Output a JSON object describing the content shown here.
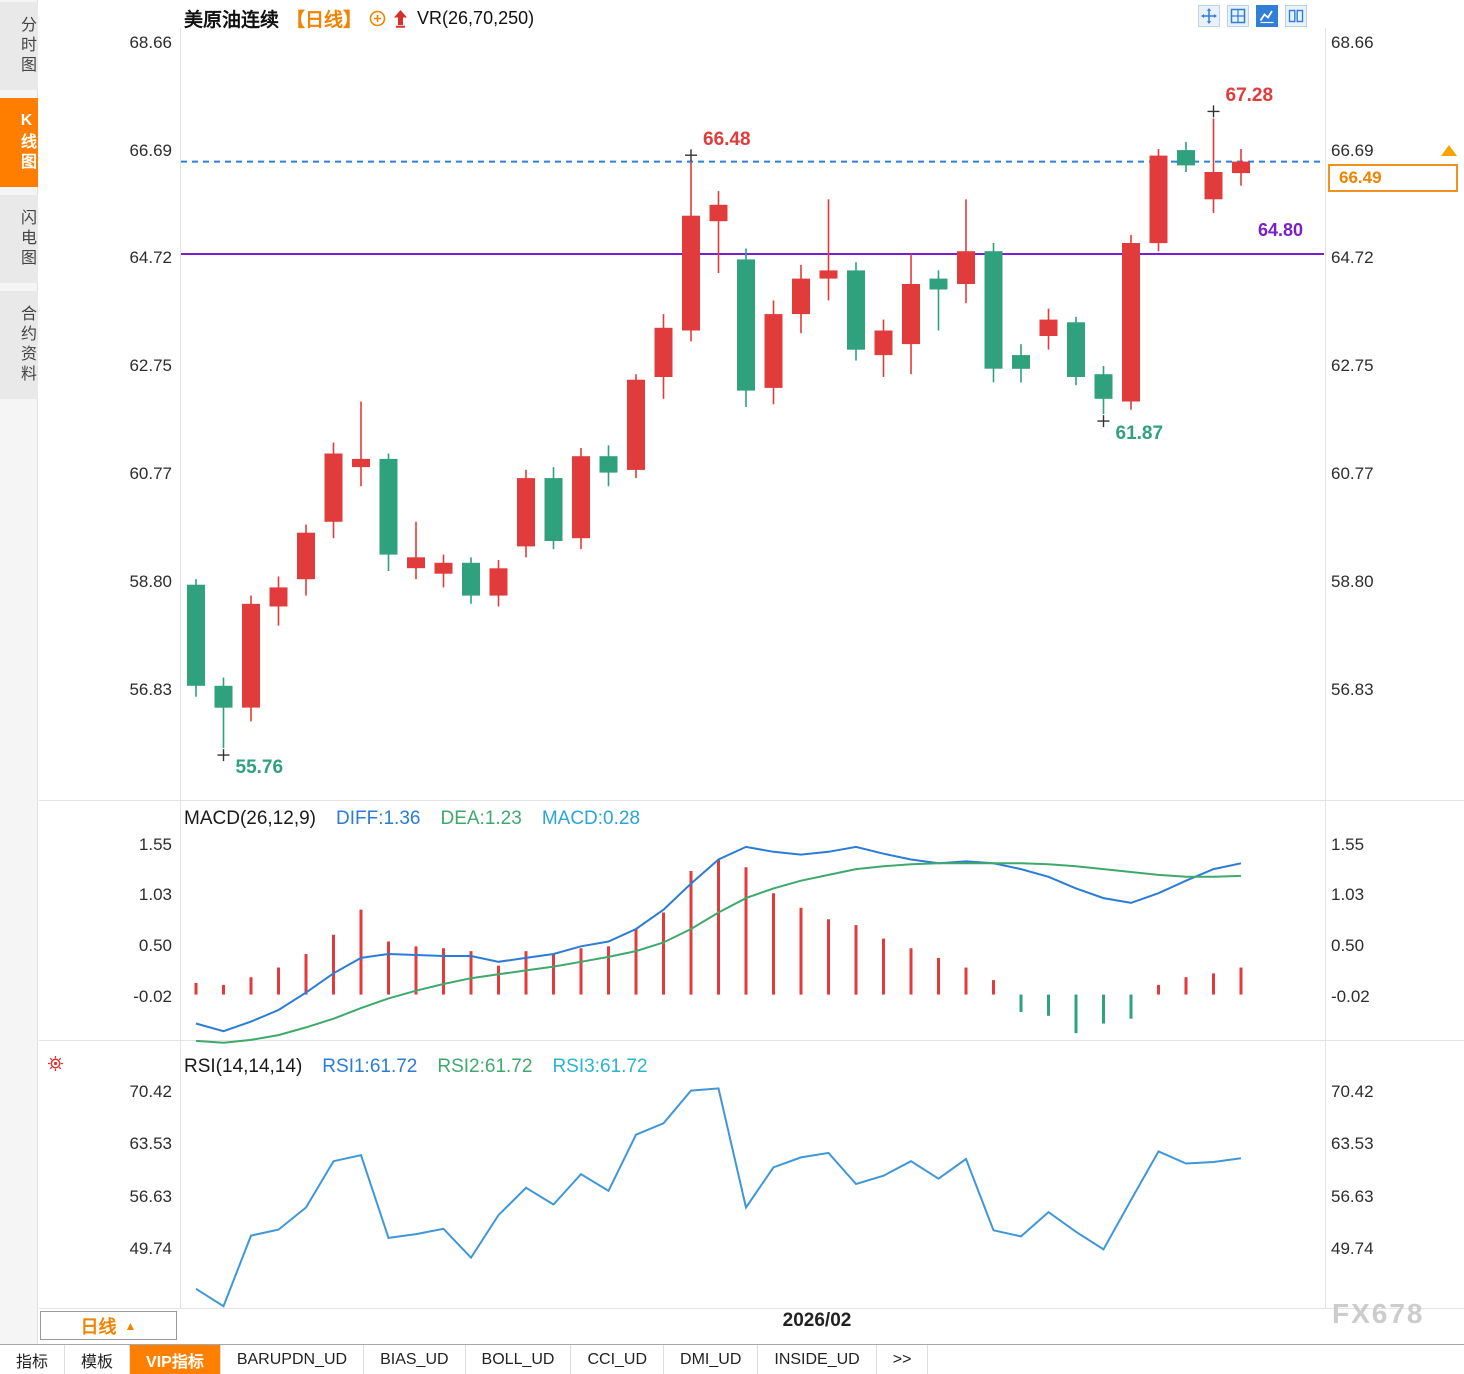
{
  "sidebar": {
    "items": [
      {
        "label": "分时图",
        "active": false
      },
      {
        "label": "K线图",
        "active": true
      },
      {
        "label": "闪电图",
        "active": false
      },
      {
        "label": "合约资料",
        "active": false
      }
    ]
  },
  "header": {
    "title": "美原油连续",
    "period_tag": "【日线】",
    "indicator_label": "VR(26,70,250)"
  },
  "toolbar": {
    "icons": [
      "pan-icon",
      "grid-layout-icon",
      "line-chart-icon",
      "split-view-icon"
    ],
    "active_icon": "line-chart-icon"
  },
  "colors": {
    "up": "#e23b3b",
    "down": "#2fa17c",
    "accent_orange": "#f08300",
    "link_blue": "#2f7ed8",
    "purple": "#7a1fd0",
    "diff_blue": "#2b7cd6",
    "dea_green": "#3fa96c",
    "rsi_blue": "#3f97d9"
  },
  "chart_data": [
    {
      "type": "candlestick",
      "title": "美原油连续 日线",
      "y_ticks": [
        68.66,
        66.69,
        64.72,
        62.75,
        60.77,
        58.8,
        56.83
      ],
      "candles": [
        [
          58.75,
          58.85,
          56.7,
          56.9
        ],
        [
          56.9,
          57.05,
          55.76,
          56.5
        ],
        [
          56.5,
          58.55,
          56.25,
          58.4
        ],
        [
          58.35,
          58.9,
          58.0,
          58.7
        ],
        [
          58.85,
          59.85,
          58.55,
          59.7
        ],
        [
          59.9,
          61.35,
          59.6,
          61.15
        ],
        [
          60.9,
          62.1,
          60.55,
          61.05
        ],
        [
          61.05,
          61.15,
          59.0,
          59.3
        ],
        [
          59.05,
          59.9,
          58.85,
          59.25
        ],
        [
          58.95,
          59.3,
          58.7,
          59.15
        ],
        [
          59.15,
          59.25,
          58.4,
          58.55
        ],
        [
          58.55,
          59.2,
          58.35,
          59.05
        ],
        [
          59.45,
          60.85,
          59.25,
          60.7
        ],
        [
          60.7,
          60.9,
          59.4,
          59.55
        ],
        [
          59.6,
          61.25,
          59.4,
          61.1
        ],
        [
          61.1,
          61.3,
          60.55,
          60.8
        ],
        [
          60.85,
          62.6,
          60.7,
          62.5
        ],
        [
          62.55,
          63.7,
          62.15,
          63.45
        ],
        [
          63.4,
          66.48,
          63.2,
          65.5
        ],
        [
          65.4,
          65.95,
          64.45,
          65.7
        ],
        [
          64.7,
          64.9,
          62.0,
          62.3
        ],
        [
          62.35,
          63.95,
          62.05,
          63.7
        ],
        [
          63.7,
          64.6,
          63.35,
          64.35
        ],
        [
          64.35,
          65.8,
          63.95,
          64.5
        ],
        [
          64.5,
          64.65,
          62.85,
          63.05
        ],
        [
          62.95,
          63.6,
          62.55,
          63.4
        ],
        [
          63.15,
          64.8,
          62.6,
          64.25
        ],
        [
          64.35,
          64.5,
          63.4,
          64.15
        ],
        [
          64.25,
          65.8,
          63.9,
          64.85
        ],
        [
          64.85,
          65.0,
          62.45,
          62.7
        ],
        [
          62.95,
          63.15,
          62.45,
          62.7
        ],
        [
          63.3,
          63.8,
          63.05,
          63.6
        ],
        [
          63.55,
          63.65,
          62.4,
          62.55
        ],
        [
          62.6,
          62.75,
          61.87,
          62.15
        ],
        [
          62.1,
          65.15,
          61.95,
          65.0
        ],
        [
          65.0,
          66.72,
          64.85,
          66.6
        ],
        [
          66.7,
          66.85,
          66.3,
          66.42
        ],
        [
          65.8,
          67.28,
          65.55,
          66.3
        ],
        [
          66.28,
          66.72,
          66.05,
          66.49
        ]
      ],
      "markers": [
        {
          "label": "55.76",
          "candle": 1,
          "price": 55.76,
          "kind": "low"
        },
        {
          "label": "66.48",
          "candle": 18,
          "price": 66.48,
          "kind": "high"
        },
        {
          "label": "61.87",
          "candle": 33,
          "price": 61.87,
          "kind": "low"
        },
        {
          "label": "67.28",
          "candle": 37,
          "price": 67.28,
          "kind": "high"
        }
      ],
      "hline": {
        "price": 64.8,
        "label": "64.80"
      },
      "last_price": {
        "price": 66.49,
        "label": "66.49"
      },
      "x_axis_label": "2026/02"
    },
    {
      "type": "macd",
      "params_label": "MACD(26,12,9)",
      "diff_label": "DIFF:1.36",
      "dea_label": "DEA:1.23",
      "macd_label": "MACD:0.28",
      "y_ticks": [
        1.55,
        1.03,
        0.5,
        -0.02
      ],
      "histogram": [
        0.12,
        0.1,
        0.18,
        0.28,
        0.42,
        0.62,
        0.88,
        0.55,
        0.5,
        0.48,
        0.45,
        0.3,
        0.45,
        0.42,
        0.48,
        0.5,
        0.68,
        0.85,
        1.28,
        1.4,
        1.32,
        1.05,
        0.9,
        0.78,
        0.72,
        0.58,
        0.48,
        0.38,
        0.28,
        0.15,
        -0.18,
        -0.22,
        -0.4,
        -0.3,
        -0.25,
        0.1,
        0.18,
        0.22,
        0.28
      ],
      "diff": [
        -0.3,
        -0.38,
        -0.28,
        -0.16,
        0.02,
        0.22,
        0.38,
        0.42,
        0.41,
        0.4,
        0.4,
        0.34,
        0.38,
        0.42,
        0.5,
        0.55,
        0.68,
        0.88,
        1.15,
        1.4,
        1.53,
        1.48,
        1.45,
        1.48,
        1.53,
        1.46,
        1.4,
        1.36,
        1.38,
        1.36,
        1.3,
        1.22,
        1.1,
        1.0,
        0.95,
        1.05,
        1.18,
        1.3,
        1.36
      ],
      "dea": [
        -0.48,
        -0.5,
        -0.47,
        -0.42,
        -0.34,
        -0.25,
        -0.14,
        -0.04,
        0.04,
        0.11,
        0.17,
        0.21,
        0.25,
        0.29,
        0.34,
        0.39,
        0.45,
        0.54,
        0.68,
        0.85,
        1.0,
        1.1,
        1.18,
        1.24,
        1.3,
        1.33,
        1.35,
        1.36,
        1.36,
        1.36,
        1.36,
        1.35,
        1.33,
        1.3,
        1.27,
        1.24,
        1.22,
        1.22,
        1.23
      ]
    },
    {
      "type": "line",
      "params_label": "RSI(14,14,14)",
      "rsi1_label": "RSI1:61.72",
      "rsi2_label": "RSI2:61.72",
      "rsi3_label": "RSI3:61.72",
      "y_ticks": [
        70.42,
        63.53,
        56.63,
        49.74
      ],
      "values": [
        44.5,
        42.2,
        51.5,
        52.3,
        55.2,
        61.3,
        62.1,
        51.2,
        51.7,
        52.4,
        48.6,
        54.2,
        57.8,
        55.6,
        59.6,
        57.4,
        64.8,
        66.3,
        70.6,
        70.9,
        55.2,
        60.5,
        61.8,
        62.4,
        58.3,
        59.4,
        61.3,
        59.0,
        61.6,
        52.2,
        51.4,
        54.6,
        52.0,
        49.7,
        56.2,
        62.6,
        61.0,
        61.2,
        61.7
      ]
    }
  ],
  "bottom": {
    "period_button": "日线",
    "date_label": "2026/02",
    "watermark": "FX678",
    "tabs": [
      {
        "label": "指标",
        "active": false
      },
      {
        "label": "模板",
        "active": false
      },
      {
        "label": "VIP指标",
        "active": true
      },
      {
        "label": "BARUPDN_UD",
        "active": false
      },
      {
        "label": "BIAS_UD",
        "active": false
      },
      {
        "label": "BOLL_UD",
        "active": false
      },
      {
        "label": "CCI_UD",
        "active": false
      },
      {
        "label": "DMI_UD",
        "active": false
      },
      {
        "label": "INSIDE_UD",
        "active": false
      },
      {
        "label": ">>",
        "active": false
      }
    ]
  }
}
